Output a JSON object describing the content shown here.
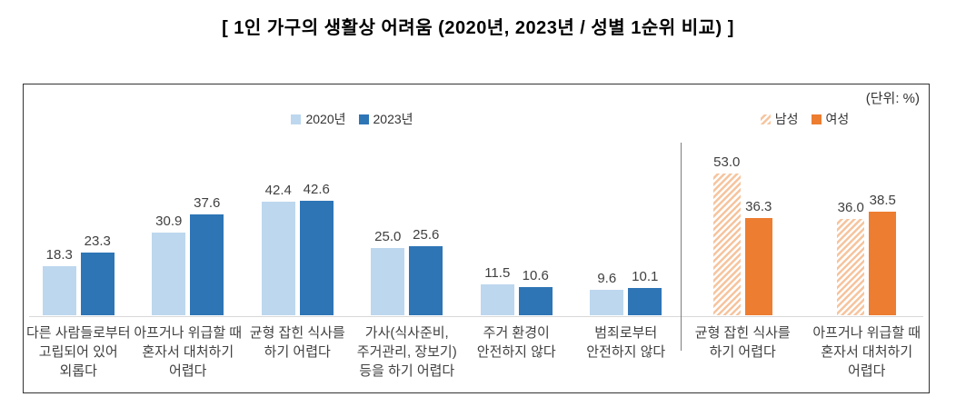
{
  "title": "[ 1인 가구의 생활상 어려움 (2020년, 2023년 / 성별 1순위 비교) ]",
  "unit_label": "(단위: %)",
  "chart_data": [
    {
      "type": "bar",
      "section": "year-comparison",
      "legend_position": "top-center",
      "grid": false,
      "ylim": [
        0,
        60
      ],
      "categories": [
        "다른 사람들로부터\n고립되어 있어\n외롭다",
        "아프거나 위급할 때\n혼자서 대처하기\n어렵다",
        "균형 잡힌 식사를\n하기 어렵다",
        "가사(식사준비,\n주거관리, 장보기)\n등을 하기 어렵다",
        "주거 환경이\n안전하지 않다",
        "범죄로부터\n안전하지 않다"
      ],
      "series": [
        {
          "name": "2020년",
          "color": "#BDD7EE",
          "hatched": false,
          "values": [
            18.3,
            30.9,
            42.4,
            25.0,
            11.5,
            9.6
          ]
        },
        {
          "name": "2023년",
          "color": "#2E75B6",
          "hatched": false,
          "values": [
            23.3,
            37.6,
            42.6,
            25.6,
            10.6,
            10.1
          ]
        }
      ]
    },
    {
      "type": "bar",
      "section": "gender-comparison",
      "legend_position": "top-center",
      "grid": false,
      "ylim": [
        0,
        60
      ],
      "categories": [
        "균형 잡힌 식사를\n하기 어렵다",
        "아프거나 위급할 때\n혼자서 대처하기\n어렵다"
      ],
      "series": [
        {
          "name": "남성",
          "color": "#F6C49E",
          "hatched": true,
          "values": [
            53.0,
            36.0
          ]
        },
        {
          "name": "여성",
          "color": "#ED7D31",
          "hatched": false,
          "values": [
            36.3,
            38.5
          ]
        }
      ]
    }
  ]
}
